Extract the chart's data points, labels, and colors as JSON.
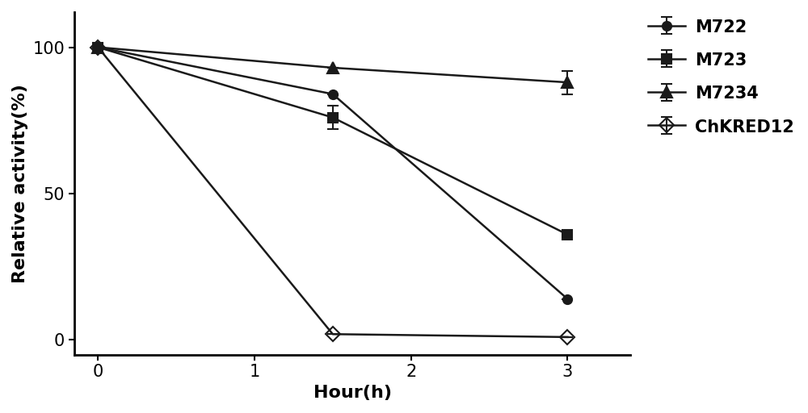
{
  "title": "",
  "xlabel": "Hour(h)",
  "ylabel": "Relative activity(%)",
  "xlim": [
    -0.15,
    3.4
  ],
  "ylim": [
    -5,
    112
  ],
  "xticks": [
    0,
    1,
    2,
    3
  ],
  "yticks": [
    0,
    50,
    100
  ],
  "series": {
    "M722": {
      "x": [
        0,
        1.5,
        3
      ],
      "y": [
        100,
        84,
        14
      ],
      "yerr": [
        0,
        0,
        0
      ],
      "marker": "o",
      "color": "#1a1a1a",
      "fillstyle": "full",
      "linewidth": 1.8,
      "markersize": 8
    },
    "M723": {
      "x": [
        0,
        1.5,
        3
      ],
      "y": [
        100,
        76,
        36
      ],
      "yerr": [
        0,
        4,
        0
      ],
      "marker": "s",
      "color": "#1a1a1a",
      "fillstyle": "full",
      "linewidth": 1.8,
      "markersize": 8
    },
    "M7234": {
      "x": [
        0,
        1.5,
        3
      ],
      "y": [
        100,
        93,
        88
      ],
      "yerr": [
        0,
        0,
        4
      ],
      "marker": "^",
      "color": "#1a1a1a",
      "fillstyle": "full",
      "linewidth": 1.8,
      "markersize": 10
    },
    "ChKRED12": {
      "x": [
        0,
        1.5,
        3
      ],
      "y": [
        100,
        2,
        1
      ],
      "yerr": [
        0,
        0,
        0
      ],
      "marker": "D",
      "color": "#1a1a1a",
      "fillstyle": "none",
      "linewidth": 1.8,
      "markersize": 9
    }
  },
  "legend_order": [
    "M722",
    "M723",
    "M7234",
    "ChKRED12"
  ],
  "fontsize_axis_label": 16,
  "fontsize_tick": 15,
  "fontsize_legend": 15,
  "background_color": "#ffffff"
}
